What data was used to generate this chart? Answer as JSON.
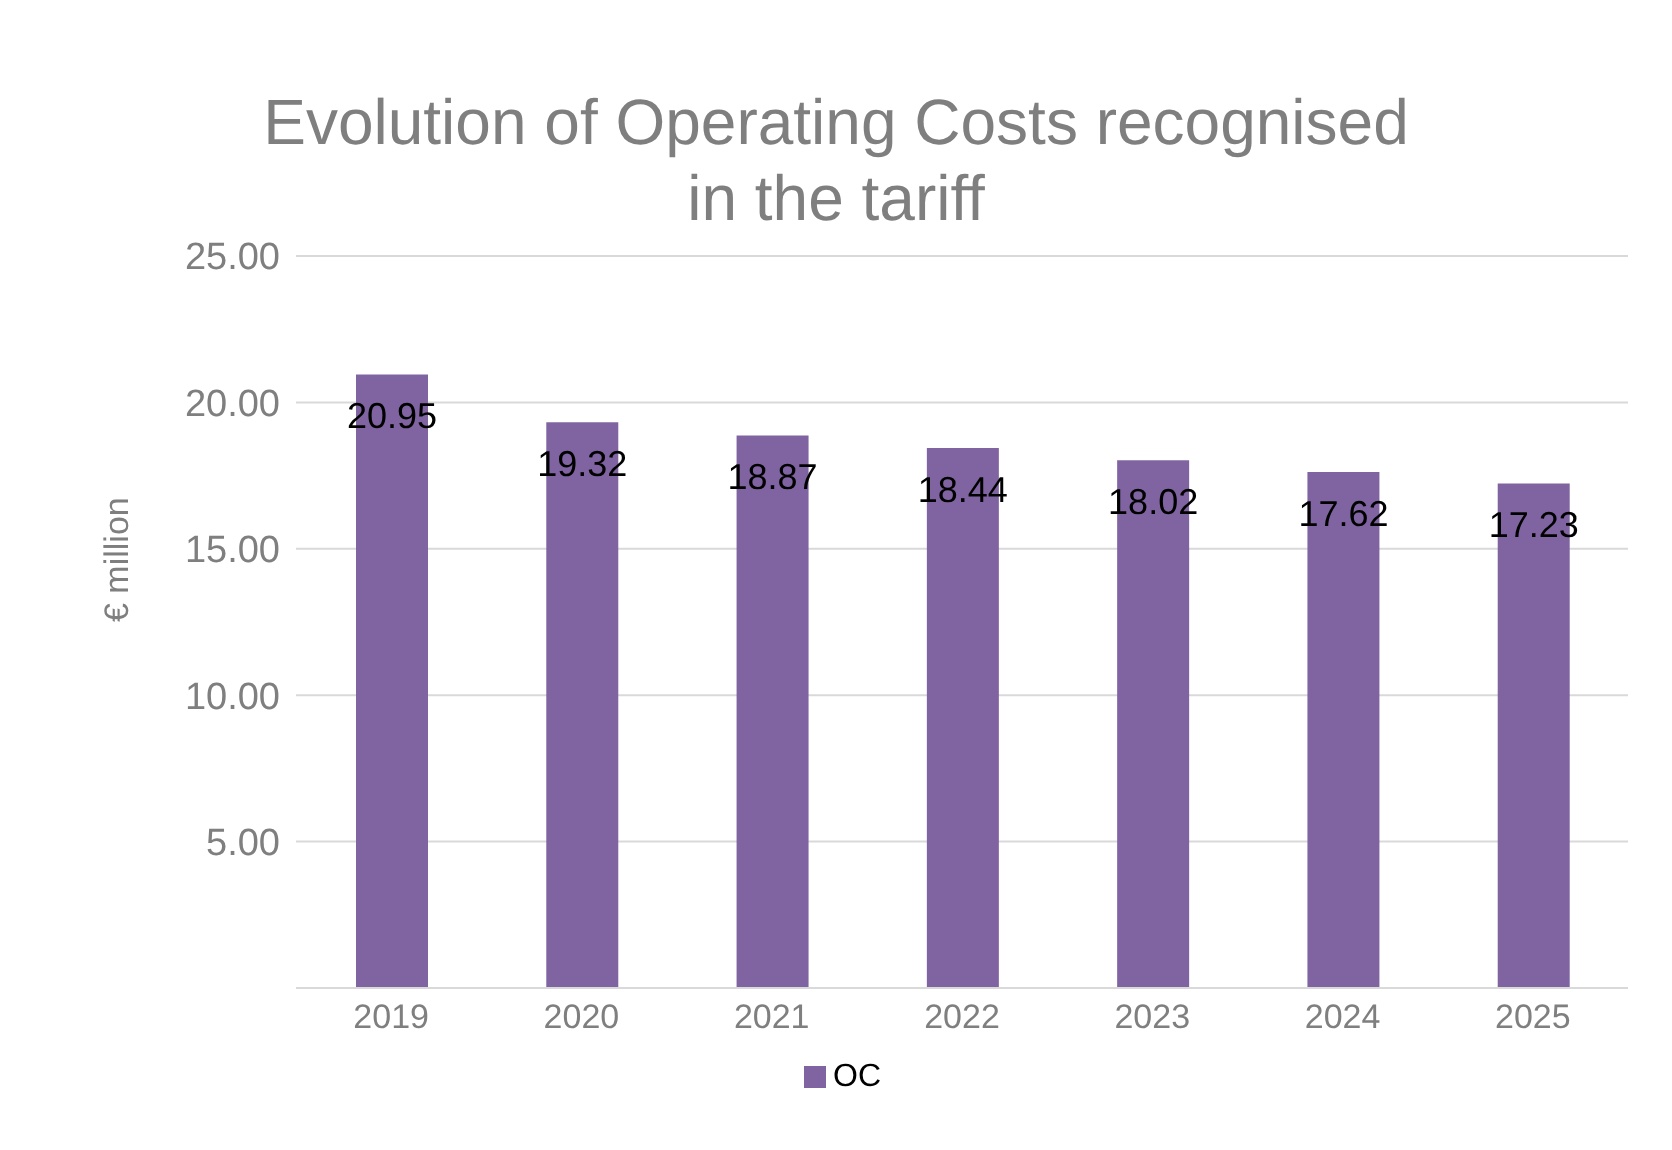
{
  "chart_data": {
    "type": "bar",
    "title": "Evolution of Operating Costs recognised in the tariff",
    "ylabel": "€ million",
    "categories": [
      "2019",
      "2020",
      "2021",
      "2022",
      "2023",
      "2024",
      "2025"
    ],
    "series": [
      {
        "name": "OC",
        "color": "#8064a2",
        "values": [
          20.95,
          19.32,
          18.87,
          18.44,
          18.02,
          17.62,
          17.23
        ]
      }
    ],
    "ylim": [
      0,
      25
    ],
    "yticks": [
      {
        "value": 0,
        "label": null
      },
      {
        "value": 5,
        "label": "5.00"
      },
      {
        "value": 10,
        "label": "10.00"
      },
      {
        "value": 15,
        "label": "15.00"
      },
      {
        "value": 20,
        "label": "20.00"
      },
      {
        "value": 25,
        "label": "25.00"
      }
    ],
    "grid": "y",
    "legend": "bottom",
    "data_labels": true
  }
}
